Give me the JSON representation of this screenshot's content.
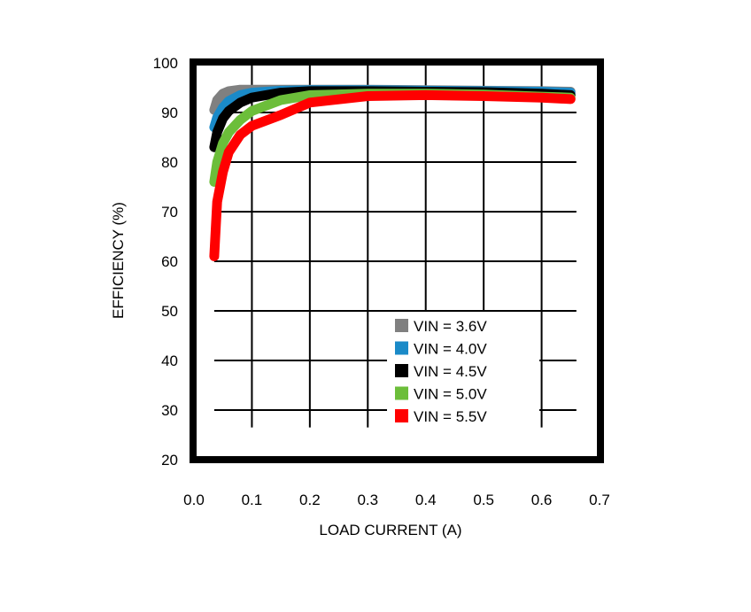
{
  "chart_data": {
    "type": "line",
    "title": "",
    "xlabel": "LOAD CURRENT (A)",
    "ylabel": "EFFICIENCY (%)",
    "xlim": [
      0.0,
      0.7
    ],
    "ylim": [
      20,
      100
    ],
    "xticks": [
      "0.0",
      "0.1",
      "0.2",
      "0.3",
      "0.4",
      "0.5",
      "0.6",
      "0.7"
    ],
    "yticks": [
      "20",
      "30",
      "40",
      "50",
      "60",
      "70",
      "80",
      "90",
      "100"
    ],
    "grid": true,
    "legend_position": "lower-right",
    "series": [
      {
        "name": "VIN = 3.6V",
        "color": "#808080",
        "x": [
          0.035,
          0.04,
          0.05,
          0.06,
          0.08,
          0.1,
          0.15,
          0.2,
          0.3,
          0.4,
          0.5,
          0.6,
          0.65
        ],
        "y": [
          90.5,
          92.5,
          93.8,
          94.3,
          94.6,
          94.6,
          94.6,
          94.6,
          94.6,
          94.5,
          94.4,
          94.3,
          94.2
        ]
      },
      {
        "name": "VIN = 4.0V",
        "color": "#1a8ac8",
        "x": [
          0.035,
          0.04,
          0.05,
          0.06,
          0.08,
          0.1,
          0.15,
          0.2,
          0.3,
          0.4,
          0.5,
          0.6,
          0.65
        ],
        "y": [
          87.0,
          89.0,
          91.0,
          92.3,
          93.5,
          94.0,
          94.4,
          94.5,
          94.5,
          94.4,
          94.3,
          94.2,
          94.0
        ]
      },
      {
        "name": "VIN = 4.5V",
        "color": "#000000",
        "x": [
          0.035,
          0.04,
          0.05,
          0.06,
          0.08,
          0.1,
          0.15,
          0.2,
          0.3,
          0.4,
          0.5,
          0.6,
          0.65
        ],
        "y": [
          83.0,
          86.0,
          88.8,
          90.3,
          92.0,
          93.0,
          94.0,
          94.3,
          94.3,
          94.2,
          94.1,
          93.8,
          93.5
        ]
      },
      {
        "name": "VIN = 5.0V",
        "color": "#6cbe3a",
        "x": [
          0.035,
          0.04,
          0.05,
          0.06,
          0.08,
          0.1,
          0.15,
          0.2,
          0.3,
          0.4,
          0.5,
          0.6,
          0.65
        ],
        "y": [
          76.0,
          80.0,
          83.8,
          86.0,
          88.5,
          90.3,
          92.5,
          93.5,
          93.8,
          93.8,
          93.6,
          93.2,
          93.0
        ]
      },
      {
        "name": "VIN = 5.5V",
        "color": "#ff0000",
        "x": [
          0.035,
          0.04,
          0.05,
          0.06,
          0.08,
          0.1,
          0.15,
          0.2,
          0.3,
          0.4,
          0.5,
          0.6,
          0.65
        ],
        "y": [
          61.0,
          72.0,
          78.0,
          82.0,
          85.5,
          87.3,
          89.5,
          92.0,
          93.3,
          93.5,
          93.3,
          93.0,
          92.7
        ]
      }
    ]
  }
}
